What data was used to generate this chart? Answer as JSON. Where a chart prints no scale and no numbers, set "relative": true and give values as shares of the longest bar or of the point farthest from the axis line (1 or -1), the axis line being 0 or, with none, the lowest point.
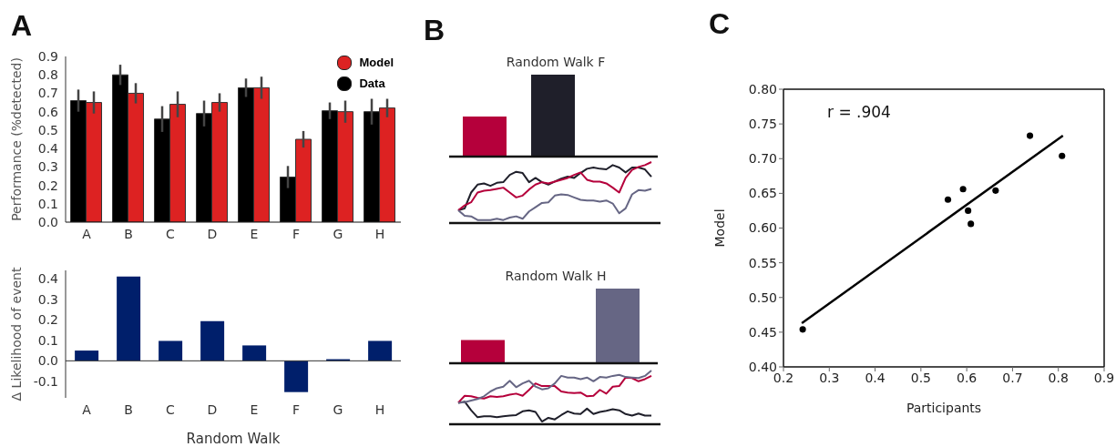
{
  "chart_data": [
    {
      "type": "bar",
      "ylabel": "Performance (%detected)",
      "categories": [
        "A",
        "B",
        "C",
        "D",
        "E",
        "F",
        "G",
        "H"
      ],
      "series": [
        {
          "name": "Data",
          "color": "#000000",
          "values": [
            0.66,
            0.8,
            0.56,
            0.59,
            0.73,
            0.245,
            0.605,
            0.6
          ],
          "errors": [
            0.06,
            0.055,
            0.07,
            0.07,
            0.05,
            0.06,
            0.045,
            0.07
          ]
        },
        {
          "name": "Model",
          "color": "#dd2222",
          "values": [
            0.65,
            0.7,
            0.64,
            0.65,
            0.73,
            0.45,
            0.6,
            0.62
          ],
          "errors": [
            0.06,
            0.055,
            0.07,
            0.05,
            0.06,
            0.045,
            0.06,
            0.05
          ]
        }
      ],
      "ylim": [
        0,
        0.9
      ],
      "yticks": [
        {
          "value": 0,
          "label": "0.0"
        },
        0.1,
        0.2,
        0.3,
        0.4,
        0.5,
        0.6,
        0.7,
        0.8,
        0.9
      ],
      "legend": "top right",
      "annotations": [
        "A"
      ]
    },
    {
      "type": "bar",
      "xlabel": "Random Walk",
      "ylabel": "Δ Likelihood of event",
      "categories": [
        "A",
        "B",
        "C",
        "D",
        "E",
        "F",
        "G",
        "H"
      ],
      "color": "#001f6b",
      "values": [
        0.05,
        0.41,
        0.097,
        0.193,
        0.075,
        -0.152,
        0.008,
        0.097
      ],
      "ylim": [
        -0.18,
        0.44
      ],
      "yticks": [
        -0.1,
        {
          "value": 0,
          "label": "0.0"
        },
        0.1,
        0.2,
        0.3,
        0.4
      ]
    },
    {
      "type": "bar",
      "title": "Random Walk F",
      "relative": true,
      "categories": [
        null,
        null
      ],
      "values": [
        0.49,
        1
      ],
      "colors": [
        "#b5003b",
        "#1f1f2a"
      ],
      "annotations": [
        "B"
      ]
    },
    {
      "type": "line",
      "relative": true,
      "categories": [
        null,
        null,
        null,
        null,
        null,
        null,
        null,
        null,
        null,
        null,
        null,
        null,
        null,
        null,
        null,
        null,
        null,
        null,
        null,
        null,
        null,
        null,
        null,
        null,
        null,
        null,
        null,
        null,
        null,
        null,
        null
      ],
      "series": [
        {
          "color": "#1f1f2a",
          "values": [
            0.21,
            0.24,
            0.5,
            0.63,
            0.65,
            0.61,
            0.66,
            0.67,
            0.79,
            0.84,
            0.82,
            0.67,
            0.74,
            0.67,
            0.63,
            0.68,
            0.73,
            0.76,
            0.74,
            0.82,
            0.89,
            0.91,
            0.89,
            0.88,
            0.95,
            0.91,
            0.83,
            0.91,
            0.91,
            0.88,
            0.76
          ]
        },
        {
          "color": "#b5003b",
          "values": [
            0.21,
            0.29,
            0.34,
            0.5,
            0.53,
            0.54,
            0.56,
            0.58,
            0.5,
            0.42,
            0.45,
            0.55,
            0.63,
            0.67,
            0.65,
            0.68,
            0.71,
            0.74,
            0.79,
            0.83,
            0.71,
            0.68,
            0.68,
            0.65,
            0.58,
            0.5,
            0.74,
            0.87,
            0.92,
            0.95,
            1
          ]
        },
        {
          "color": "#666684",
          "values": [
            0.21,
            0.12,
            0.11,
            0.05,
            0.05,
            0.05,
            0.07,
            0.05,
            0.09,
            0.11,
            0.07,
            0.19,
            0.26,
            0.33,
            0.34,
            0.45,
            0.47,
            0.46,
            0.42,
            0.38,
            0.37,
            0.37,
            0.35,
            0.37,
            0.32,
            0.16,
            0.24,
            0.47,
            0.54,
            0.53,
            0.56
          ]
        }
      ]
    },
    {
      "type": "bar",
      "title": "Random Walk H",
      "relative": true,
      "categories": [
        null,
        null
      ],
      "values": [
        0.31,
        1
      ],
      "colors": [
        "#b5003b",
        "#666684"
      ]
    },
    {
      "type": "line",
      "relative": true,
      "categories": [
        null,
        null,
        null,
        null,
        null,
        null,
        null,
        null,
        null,
        null,
        null,
        null,
        null,
        null,
        null,
        null,
        null,
        null,
        null,
        null,
        null,
        null,
        null,
        null,
        null,
        null,
        null,
        null,
        null,
        null,
        null
      ],
      "series": [
        {
          "color": "#1f1f2a",
          "values": [
            0.4,
            0.42,
            0.26,
            0.13,
            0.15,
            0.15,
            0.13,
            0.15,
            0.16,
            0.17,
            0.24,
            0.26,
            0.23,
            0.05,
            0.12,
            0.09,
            0.17,
            0.24,
            0.2,
            0.19,
            0.29,
            0.19,
            0.23,
            0.25,
            0.28,
            0.26,
            0.19,
            0.16,
            0.2,
            0.16,
            0.16
          ]
        },
        {
          "color": "#b5003b",
          "values": [
            0.4,
            0.53,
            0.52,
            0.49,
            0.48,
            0.52,
            0.51,
            0.52,
            0.55,
            0.57,
            0.53,
            0.64,
            0.76,
            0.71,
            0.71,
            0.71,
            0.61,
            0.59,
            0.58,
            0.59,
            0.52,
            0.53,
            0.64,
            0.57,
            0.7,
            0.71,
            0.87,
            0.86,
            0.8,
            0.84,
            0.9
          ]
        },
        {
          "color": "#666684",
          "values": [
            0.4,
            0.41,
            0.44,
            0.47,
            0.52,
            0.61,
            0.67,
            0.7,
            0.81,
            0.69,
            0.76,
            0.81,
            0.7,
            0.65,
            0.67,
            0.76,
            0.9,
            0.87,
            0.87,
            0.84,
            0.87,
            0.8,
            0.88,
            0.87,
            0.9,
            0.92,
            0.88,
            0.87,
            0.86,
            0.9,
            1
          ]
        }
      ]
    },
    {
      "type": "scatter",
      "xlabel": "Participants",
      "ylabel": "Model",
      "series": [
        {
          "type": "scatter",
          "marker": "circle",
          "color": "#000000",
          "x": [
            0.242,
            0.559,
            0.592,
            0.603,
            0.609,
            0.663,
            0.738,
            0.808
          ],
          "values": [
            0.454,
            0.641,
            0.656,
            0.625,
            0.606,
            0.654,
            0.733,
            0.704
          ]
        },
        {
          "type": "line",
          "color": "#000000",
          "x": [
            0.24,
            0.81
          ],
          "values": [
            0.463,
            0.733
          ]
        }
      ],
      "xlim": [
        0.2,
        0.9
      ],
      "xticks": [
        0.2,
        0.3,
        0.4,
        0.5,
        0.6,
        0.7,
        0.8,
        0.9
      ],
      "ylim": [
        0.4,
        0.8
      ],
      "yticks": [
        {
          "value": 0.4,
          "label": "0.40"
        },
        {
          "value": 0.45,
          "label": "0.45"
        },
        {
          "value": 0.5,
          "label": "0.50"
        },
        {
          "value": 0.55,
          "label": "0.55"
        },
        {
          "value": 0.6,
          "label": "0.60"
        },
        {
          "value": 0.65,
          "label": "0.65"
        },
        {
          "value": 0.7,
          "label": "0.70"
        },
        {
          "value": 0.75,
          "label": "0.75"
        },
        {
          "value": 0.8,
          "label": "0.80"
        }
      ],
      "annotations": [
        "C",
        "r = .904"
      ]
    }
  ]
}
